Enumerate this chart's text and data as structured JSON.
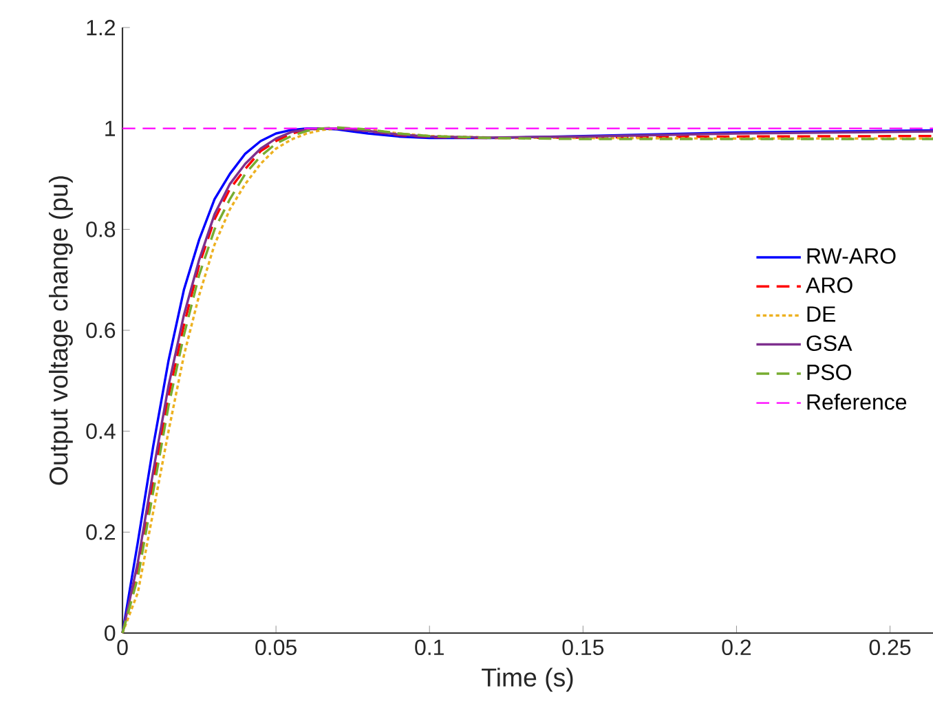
{
  "chart_data": {
    "type": "line",
    "xlabel": "Time (s)",
    "ylabel": "Output voltage change (pu)",
    "x": [
      0,
      0.005,
      0.01,
      0.015,
      0.02,
      0.025,
      0.03,
      0.035,
      0.04,
      0.045,
      0.05,
      0.055,
      0.06,
      0.065,
      0.07,
      0.08,
      0.09,
      0.1,
      0.12,
      0.15,
      0.2,
      0.264
    ],
    "series": [
      {
        "name": "RW-ARO",
        "color": "#0000ff",
        "line_style": "solid",
        "values": [
          0,
          0.18,
          0.37,
          0.54,
          0.68,
          0.78,
          0.86,
          0.91,
          0.95,
          0.975,
          0.99,
          0.997,
          1.0,
          1.0,
          0.998,
          0.99,
          0.984,
          0.981,
          0.981,
          0.985,
          0.992,
          0.996
        ]
      },
      {
        "name": "ARO",
        "color": "#ff0000",
        "line_style": "dashed",
        "values": [
          0,
          0.12,
          0.3,
          0.47,
          0.61,
          0.73,
          0.82,
          0.88,
          0.92,
          0.955,
          0.975,
          0.99,
          0.997,
          1.0,
          1.0,
          0.995,
          0.987,
          0.983,
          0.981,
          0.982,
          0.984,
          0.985
        ]
      },
      {
        "name": "DE",
        "color": "#edb120",
        "line_style": "dotted",
        "values": [
          0,
          0.08,
          0.24,
          0.4,
          0.55,
          0.67,
          0.77,
          0.84,
          0.89,
          0.93,
          0.96,
          0.978,
          0.99,
          0.997,
          1.0,
          0.998,
          0.99,
          0.985,
          0.982,
          0.981,
          0.98,
          0.98
        ]
      },
      {
        "name": "GSA",
        "color": "#7e2f8e",
        "line_style": "solid",
        "values": [
          0,
          0.14,
          0.32,
          0.49,
          0.63,
          0.74,
          0.83,
          0.89,
          0.93,
          0.96,
          0.98,
          0.993,
          0.998,
          1.0,
          1.0,
          0.995,
          0.988,
          0.984,
          0.982,
          0.984,
          0.99,
          0.994
        ]
      },
      {
        "name": "PSO",
        "color": "#77ac30",
        "line_style": "dashed",
        "values": [
          0,
          0.11,
          0.28,
          0.45,
          0.59,
          0.71,
          0.8,
          0.86,
          0.91,
          0.945,
          0.97,
          0.985,
          0.995,
          1.0,
          1.002,
          0.998,
          0.99,
          0.985,
          0.981,
          0.979,
          0.979,
          0.979
        ]
      },
      {
        "name": "Reference",
        "color": "#ff00ff",
        "line_style": "dashed",
        "x": [
          0,
          0.264
        ],
        "values": [
          1,
          1
        ]
      }
    ],
    "xlim": [
      0,
      0.264
    ],
    "xticks": [
      0,
      0.05,
      0.1,
      0.15,
      0.2,
      0.25
    ],
    "ylim": [
      0,
      1.2
    ],
    "yticks": [
      0,
      0.2,
      0.4,
      0.6,
      0.8,
      1,
      1.2
    ],
    "legend": "right",
    "grid": false,
    "marker": "none"
  }
}
